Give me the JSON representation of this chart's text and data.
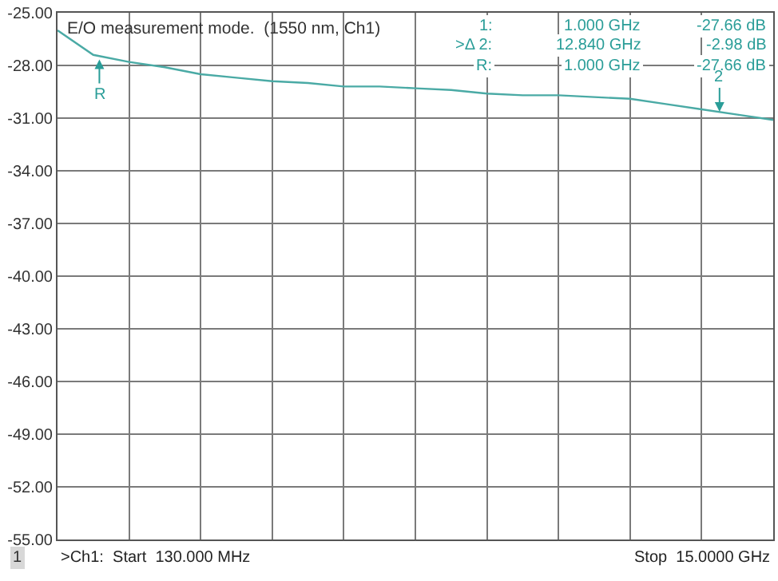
{
  "chart_data": {
    "type": "line",
    "title": "E/O measurement mode.  (1550 nm, Ch1)",
    "categories": [
      null,
      null,
      null,
      null,
      null,
      null,
      null,
      null,
      null,
      null,
      null,
      null,
      null,
      null,
      null,
      null,
      null,
      null,
      null,
      null,
      null
    ],
    "series": [
      {
        "color": "#4aaaa5",
        "values": [
          -26.0,
          -27.4,
          -27.8,
          -28.1,
          -28.5,
          -28.7,
          -28.9,
          -29.0,
          -29.2,
          -29.2,
          -29.3,
          -29.4,
          -29.6,
          -29.7,
          -29.7,
          -29.8,
          -29.9,
          -30.2,
          -30.5,
          -30.8,
          -31.1
        ]
      }
    ],
    "ylim": [
      -55,
      -25
    ],
    "yticks": [
      {
        "value": -25,
        "label": "-25.00"
      },
      {
        "value": -28,
        "label": "-28.00"
      },
      {
        "value": -31,
        "label": "-31.00"
      },
      {
        "value": -34,
        "label": "-34.00"
      },
      {
        "value": -37,
        "label": "-37.00"
      },
      {
        "value": -40,
        "label": "-40.00"
      },
      {
        "value": -43,
        "label": "-43.00"
      },
      {
        "value": -46,
        "label": "-46.00"
      },
      {
        "value": -49,
        "label": "-49.00"
      },
      {
        "value": -52,
        "label": "-52.00"
      },
      {
        "value": -55,
        "label": "-55.00"
      }
    ],
    "tick_labels": "y",
    "grid": true,
    "marker": "none",
    "line_style": "solid",
    "annotations": [
      "1:",
      "1.000 GHz",
      "-27.66 dB",
      ">Δ 2:",
      "12.840 GHz",
      "-2.98 dB",
      "R:",
      "1.000 GHz",
      "-27.66 dB",
      "1",
      ">Ch1:  Start  130.000 MHz",
      "Stop  15.0000 GHz",
      {
        "text": "R",
        "y": -27.66
      },
      {
        "text": "2",
        "y": -30.64
      }
    ]
  }
}
